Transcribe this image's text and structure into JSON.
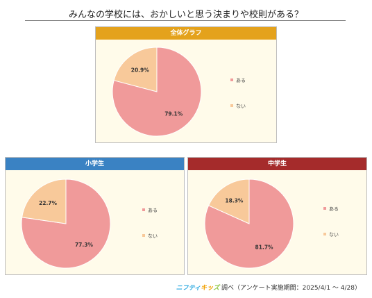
{
  "title": "みんなの学校には、おかしいと思う決まりや校則がある？",
  "colors": {
    "yes": "#f09a9a",
    "no": "#f8c99a"
  },
  "chart_data": [
    {
      "type": "pie",
      "title": "全体グラフ",
      "header_color": "#e4a21c",
      "categories": [
        "ある",
        "ない"
      ],
      "values": [
        79.1,
        20.9
      ],
      "value_labels": [
        "79.1%",
        "20.9%"
      ],
      "legend": "right"
    },
    {
      "type": "pie",
      "title": "小学生",
      "header_color": "#3a82c3",
      "categories": [
        "ある",
        "ない"
      ],
      "values": [
        77.3,
        22.7
      ],
      "value_labels": [
        "77.3%",
        "22.7%"
      ],
      "legend": "right"
    },
    {
      "type": "pie",
      "title": "中学生",
      "header_color": "#a52b2b",
      "categories": [
        "ある",
        "ない"
      ],
      "values": [
        81.7,
        18.3
      ],
      "value_labels": [
        "81.7%",
        "18.3%"
      ],
      "legend": "right"
    }
  ],
  "footer": {
    "brand_part1": "ニフティ",
    "brand_part2": "キッ",
    "brand_part3": "ズ",
    "text": "調べ（アンケート実施期間：2025/4/1 ～ 4/28）"
  }
}
